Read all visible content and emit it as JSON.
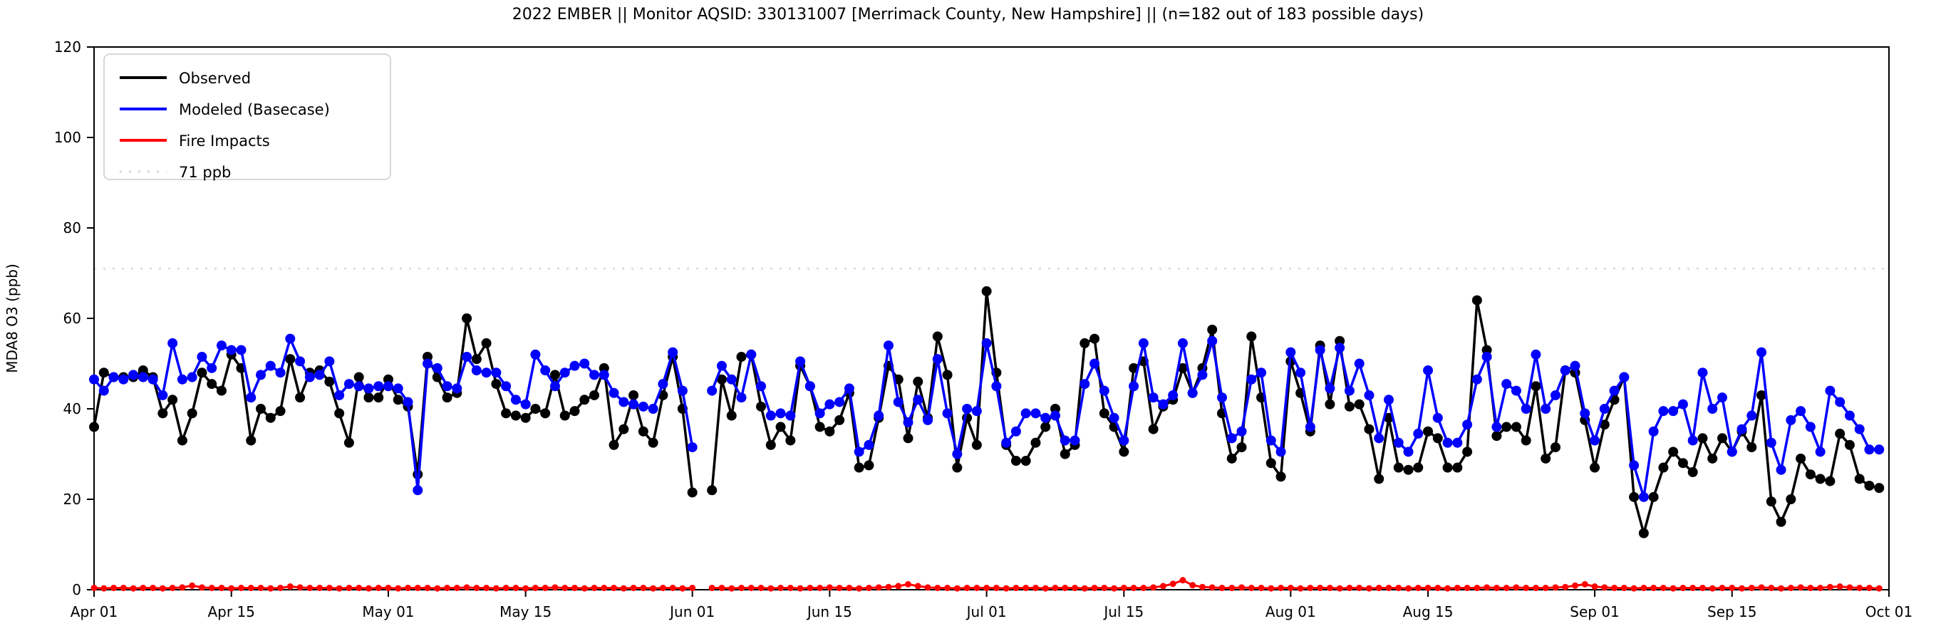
{
  "title": "2022 EMBER || Monitor AQSID: 330131007 [Merrimack County, New Hampshire] || (n=182 out of 183 possible days)",
  "y_axis": {
    "label": "MDA8 O3 (ppb)",
    "ticks": [
      0,
      20,
      40,
      60,
      80,
      100,
      120
    ],
    "range": [
      0,
      120
    ]
  },
  "x_axis": {
    "range_days": 183,
    "start_date": "Apr 01",
    "end_date": "Oct 01",
    "ticks": [
      {
        "label": "Apr 01",
        "day": 0
      },
      {
        "label": "Apr 15",
        "day": 14
      },
      {
        "label": "May 01",
        "day": 30
      },
      {
        "label": "May 15",
        "day": 44
      },
      {
        "label": "Jun 01",
        "day": 61
      },
      {
        "label": "Jun 15",
        "day": 75
      },
      {
        "label": "Jul 01",
        "day": 91
      },
      {
        "label": "Jul 15",
        "day": 105
      },
      {
        "label": "Aug 01",
        "day": 122
      },
      {
        "label": "Aug 15",
        "day": 136
      },
      {
        "label": "Sep 01",
        "day": 153
      },
      {
        "label": "Sep 15",
        "day": 167
      },
      {
        "label": "Oct 01",
        "day": 183
      }
    ]
  },
  "legend": [
    {
      "label": "Observed",
      "color": "#000000",
      "style": "solid"
    },
    {
      "label": "Modeled (Basecase)",
      "color": "#0000ff",
      "style": "solid"
    },
    {
      "label": "Fire Impacts",
      "color": "#ff0000",
      "style": "solid"
    },
    {
      "label": "71 ppb",
      "color": "#dcdcdc",
      "style": "dotted"
    }
  ],
  "threshold_ppb": 71,
  "colors": {
    "observed": "#000000",
    "modeled": "#0000ff",
    "fire": "#ff0000",
    "threshold": "#dcdcdc",
    "axis": "#000000"
  },
  "chart_data": {
    "type": "line",
    "title": "2022 EMBER || Monitor AQSID: 330131007 [Merrimack County, New Hampshire] || (n=182 out of 183 possible days)",
    "xlabel": "",
    "ylabel": "MDA8 O3 (ppb)",
    "ylim": [
      0,
      120
    ],
    "x_unit": "days since Apr 01 2022 (null = missing day Jun 02)",
    "grid": false,
    "legend_position": "upper-left",
    "series": [
      {
        "name": "Observed",
        "color": "#000000",
        "marker": "circle",
        "values": [
          36,
          48,
          47,
          47,
          47,
          48.5,
          47,
          39,
          42,
          33,
          39,
          48,
          45.5,
          44,
          52,
          49,
          33,
          40,
          38,
          39.5,
          51,
          42.5,
          48,
          48.5,
          46,
          39,
          32.5,
          47,
          42.5,
          42.5,
          46.5,
          42,
          40.5,
          25.5,
          51.5,
          47,
          42.5,
          43.5,
          60,
          51,
          54.5,
          45.5,
          39,
          38.5,
          38,
          40,
          39,
          47.5,
          38.5,
          39.5,
          42,
          43,
          49,
          32,
          35.5,
          43,
          35,
          32.5,
          43,
          51.5,
          40,
          21.5,
          null,
          22,
          46.5,
          38.5,
          51.5,
          52,
          40.5,
          32,
          36,
          33,
          49.5,
          45,
          36,
          35,
          37.5,
          43.5,
          27,
          27.5,
          38,
          49.5,
          46.5,
          33.5,
          46,
          38,
          56,
          47.5,
          27,
          38,
          32,
          66,
          48,
          32,
          28.5,
          28.5,
          32.5,
          36,
          40,
          30,
          32,
          54.5,
          55.5,
          39,
          36,
          30.5,
          49,
          50.5,
          35.5,
          40.5,
          42,
          49,
          43.5,
          49,
          57.5,
          39,
          29,
          31.5,
          56,
          42.5,
          28,
          25,
          50.5,
          43.5,
          35,
          54,
          41,
          55,
          40.5,
          41,
          35.5,
          24.5,
          38,
          27,
          26.5,
          27,
          35,
          33.5,
          27,
          27,
          30.5,
          64,
          53,
          34,
          36,
          36,
          33,
          45,
          29,
          31.5,
          48.5,
          48,
          37.5,
          27,
          36.5,
          42,
          47,
          20.5,
          12.5,
          20.5,
          27,
          30.5,
          28,
          26,
          33.5,
          29,
          33.5,
          30.5,
          35,
          31.5,
          43,
          19.5,
          15,
          20,
          29,
          25.5,
          24.5,
          24,
          34.5,
          32,
          24.5,
          23,
          22.5
        ]
      },
      {
        "name": "Modeled (Basecase)",
        "color": "#0000ff",
        "marker": "circle",
        "values": [
          46.5,
          44,
          47,
          46.5,
          47.5,
          47,
          46.5,
          43,
          54.5,
          46.5,
          47,
          51.5,
          49,
          54,
          53,
          53,
          42.5,
          47.5,
          49.5,
          48,
          55.5,
          50.5,
          47,
          47.5,
          50.5,
          43,
          45.5,
          45,
          44.5,
          45,
          45,
          44.5,
          41.5,
          22,
          50,
          49,
          45,
          44.5,
          51.5,
          48.5,
          48,
          48,
          45,
          42,
          41,
          52,
          48.5,
          45,
          48,
          49.5,
          50,
          47.5,
          47.5,
          43.5,
          41.5,
          41,
          40.5,
          40,
          45.5,
          52.5,
          44,
          31.5,
          null,
          44,
          49.5,
          46.5,
          42.5,
          52,
          45,
          38.5,
          39,
          38.5,
          50.5,
          45,
          39,
          41,
          41.5,
          44.5,
          30.5,
          32,
          38.5,
          54,
          41.5,
          37,
          42,
          37.5,
          51,
          39,
          30,
          40,
          39.5,
          54.5,
          45,
          32.5,
          35,
          39,
          39,
          38,
          38.5,
          33,
          33,
          45.5,
          50,
          44,
          38,
          33,
          45,
          54.5,
          42.5,
          41,
          43,
          54.5,
          43.5,
          47.5,
          55,
          42.5,
          33.5,
          35,
          46.5,
          48,
          33,
          30.5,
          52.5,
          48,
          36,
          53,
          44.5,
          53.5,
          44,
          50,
          43,
          33.5,
          42,
          32.5,
          30.5,
          34.5,
          48.5,
          38,
          32.5,
          32.5,
          36.5,
          46.5,
          51.5,
          36,
          45.5,
          44,
          40,
          52,
          40,
          43,
          48.5,
          49.5,
          39,
          33,
          40,
          44,
          47,
          27.5,
          20.5,
          35,
          39.5,
          39.5,
          41,
          33,
          48,
          40,
          42.5,
          30.5,
          35.5,
          38.5,
          52.5,
          32.5,
          26.5,
          37.5,
          39.5,
          36,
          30.5,
          44,
          41.5,
          38.5,
          35.5,
          31,
          31
        ]
      },
      {
        "name": "Fire Impacts",
        "color": "#ff0000",
        "marker": "circle",
        "values": [
          0.4,
          0.3,
          0.4,
          0.4,
          0.3,
          0.4,
          0.4,
          0.3,
          0.4,
          0.5,
          0.9,
          0.5,
          0.4,
          0.4,
          0.3,
          0.4,
          0.4,
          0.4,
          0.3,
          0.4,
          0.7,
          0.5,
          0.4,
          0.4,
          0.4,
          0.3,
          0.4,
          0.4,
          0.3,
          0.4,
          0.4,
          0.3,
          0.4,
          0.4,
          0.4,
          0.3,
          0.4,
          0.4,
          0.5,
          0.4,
          0.4,
          0.3,
          0.4,
          0.4,
          0.3,
          0.4,
          0.4,
          0.5,
          0.4,
          0.4,
          0.3,
          0.4,
          0.4,
          0.4,
          0.3,
          0.4,
          0.4,
          0.3,
          0.4,
          0.4,
          0.3,
          0.4,
          null,
          0.4,
          0.4,
          0.3,
          0.4,
          0.4,
          0.4,
          0.3,
          0.4,
          0.4,
          0.3,
          0.4,
          0.4,
          0.5,
          0.4,
          0.4,
          0.3,
          0.4,
          0.5,
          0.6,
          0.8,
          1.2,
          0.8,
          0.5,
          0.4,
          0.4,
          0.3,
          0.4,
          0.4,
          0.4,
          0.4,
          0.3,
          0.4,
          0.4,
          0.4,
          0.3,
          0.4,
          0.4,
          0.4,
          0.3,
          0.4,
          0.4,
          0.3,
          0.4,
          0.4,
          0.4,
          0.5,
          0.8,
          1.3,
          2.1,
          1.0,
          0.6,
          0.5,
          0.4,
          0.4,
          0.5,
          0.4,
          0.4,
          0.3,
          0.4,
          0.4,
          0.3,
          0.4,
          0.4,
          0.4,
          0.3,
          0.4,
          0.4,
          0.3,
          0.4,
          0.4,
          0.4,
          0.3,
          0.4,
          0.4,
          0.4,
          0.3,
          0.4,
          0.4,
          0.4,
          0.5,
          0.4,
          0.4,
          0.5,
          0.4,
          0.4,
          0.4,
          0.5,
          0.6,
          0.9,
          1.2,
          0.7,
          0.5,
          0.4,
          0.4,
          0.3,
          0.4,
          0.4,
          0.4,
          0.3,
          0.4,
          0.4,
          0.4,
          0.3,
          0.4,
          0.4,
          0.3,
          0.4,
          0.5,
          0.4,
          0.3,
          0.4,
          0.5,
          0.4,
          0.4,
          0.6,
          0.7,
          0.5,
          0.4,
          0.4,
          0.3
        ]
      },
      {
        "name": "71 ppb",
        "color": "#dcdcdc",
        "style": "dotted-horizontal-threshold",
        "value": 71
      }
    ]
  }
}
